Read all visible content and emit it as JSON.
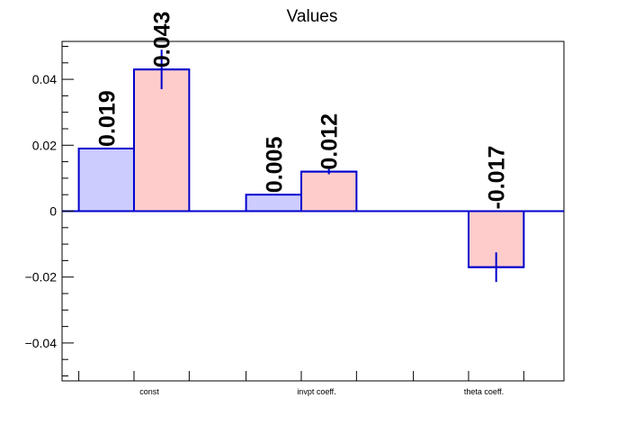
{
  "chart_data": {
    "type": "bar",
    "title": "Values",
    "xlabel": "",
    "ylabel": "",
    "ylim": [
      -0.0515,
      0.0515
    ],
    "yticks": [
      -0.04,
      -0.02,
      0,
      0.02,
      0.04
    ],
    "ytick_labels": [
      "−0.04",
      "−0.02",
      "0",
      "0.02",
      "0.04"
    ],
    "categories": [
      "const",
      "invpt coeff.",
      "theta coeff."
    ],
    "grid": false,
    "legend": "none",
    "series": [
      {
        "values": [
          0.019,
          0.005,
          0
        ],
        "labels": [
          "0.019",
          "0.005",
          ""
        ],
        "errors": [
          0,
          0,
          0
        ],
        "fill": "#ccccff",
        "stroke": "#0000cc"
      },
      {
        "values": [
          0.043,
          0.012,
          -0.017
        ],
        "labels": [
          "0.043",
          "0.012",
          "-0.017"
        ],
        "errors": [
          0.006,
          0.0008,
          0.0045
        ],
        "fill": "#ffcccc",
        "stroke": "#0000cc"
      }
    ],
    "axis_color": "#000000",
    "zero_line_color": "#0000cc"
  }
}
